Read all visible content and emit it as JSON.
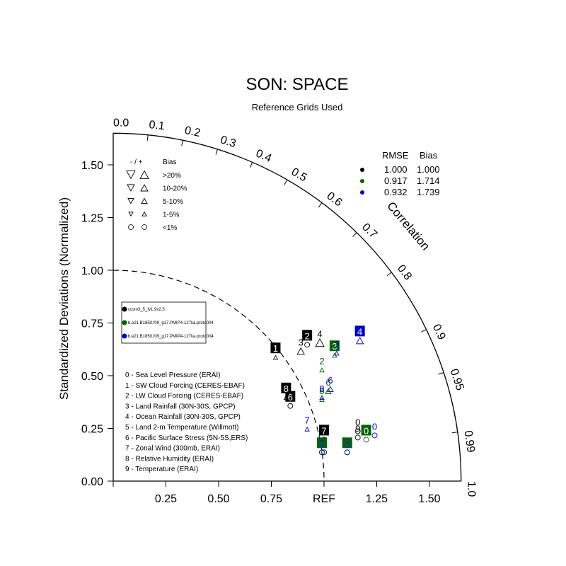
{
  "chart_data": {
    "type": "scatter",
    "subtype": "taylor-diagram",
    "title": "SON: SPACE",
    "subtitle": "Reference Grids Used",
    "ylabel": "Standardized Deviations (Normalized)",
    "correlation_label": "Correlation",
    "x_ticks": [
      "0.00",
      "0.25",
      "0.50",
      "0.75",
      "REF",
      "1.25",
      "1.50"
    ],
    "x_tick_values": [
      0,
      0.25,
      0.5,
      0.75,
      1.0,
      1.25,
      1.5
    ],
    "y_ticks": [
      "0.00",
      "0.25",
      "0.50",
      "0.75",
      "1.00",
      "1.25",
      "1.50"
    ],
    "y_tick_values": [
      0,
      0.25,
      0.5,
      0.75,
      1.0,
      1.25,
      1.5
    ],
    "radius_max": 1.65,
    "corr_ticks": [
      "0.0",
      "0.1",
      "0.2",
      "0.3",
      "0.4",
      "0.5",
      "0.6",
      "0.7",
      "0.8",
      "0.9",
      "0.95",
      "0.99",
      "1.0"
    ],
    "corr_tick_values": [
      0.0,
      0.1,
      0.2,
      0.3,
      0.4,
      0.5,
      0.6,
      0.7,
      0.8,
      0.9,
      0.95,
      0.99,
      1.0
    ],
    "reference_arc_radius": 1.0,
    "bias_legend": {
      "header_sign": "- / +",
      "header_bias": "Bias",
      "rows": [
        {
          "label": ">20%",
          "level": 4
        },
        {
          "label": "10-20%",
          "level": 3
        },
        {
          "label": "5-10%",
          "level": 2
        },
        {
          "label": "1-5%",
          "level": 1
        },
        {
          "label": "<1%",
          "level": 0
        }
      ]
    },
    "summary": {
      "header_rmse": "RMSE",
      "header_bias": "Bias",
      "rows": [
        {
          "color": "#000000",
          "rmse": "1.000",
          "bias": "1.000"
        },
        {
          "color": "#006400",
          "rmse": "0.917",
          "bias": "1.714"
        },
        {
          "color": "#0000cd",
          "rmse": "0.932",
          "bias": "1.739"
        }
      ]
    },
    "cases": [
      {
        "name": "ccsm3_5_fv1.9x2.5",
        "color": "#000000"
      },
      {
        "name": "b.e21.B1850.f09_g17.PMIP4-127ka.proto004",
        "color": "#006400"
      },
      {
        "name": "b.e21.B1850.f09_g17.PMIP4-127ka.proto004",
        "color": "#0000cd"
      }
    ],
    "variables": [
      "0 - Sea Level Pressure (ERAI)",
      "1 - SW Cloud Forcing (CERES-EBAF)",
      "2 - LW Cloud Forcing (CERES-EBAF)",
      "3 - Land Rainfall (30N-30S, GPCP)",
      "4 - Ocean Rainfall (30N-30S, GPCP)",
      "5 - Land 2-m Temperature (Willmott)",
      "6 - Pacific Surface Stress (5N-5S,ERS)",
      "7 - Zonal Wind (300mb, ERAI)",
      "8 - Relative Humidity (ERAI)",
      "9 - Temperature (ERAI)"
    ],
    "series": [
      {
        "name": "ccsm3_5_fv1.9x2.5",
        "points": [
          {
            "id": "0",
            "x": 1.16,
            "y": 0.26,
            "boxed": false,
            "marker": "circle",
            "dir": "up",
            "level": 0
          },
          {
            "id": "1",
            "x": 0.77,
            "y": 0.61,
            "boxed": true,
            "marker": "tri",
            "dir": "up",
            "level": 1
          },
          {
            "id": "2",
            "x": 0.92,
            "y": 0.67,
            "boxed": true,
            "marker": "circle",
            "dir": "up",
            "level": 0
          },
          {
            "id": "3",
            "x": 0.89,
            "y": 0.64,
            "boxed": false,
            "marker": "tri",
            "dir": "up",
            "level": 3
          },
          {
            "id": "4",
            "x": 0.98,
            "y": 0.68,
            "boxed": false,
            "marker": "tri",
            "dir": "up",
            "level": 4
          },
          {
            "id": "5",
            "x": 1.0,
            "y": 0.16,
            "boxed": false,
            "marker": "circle",
            "dir": "up",
            "level": 0
          },
          {
            "id": "6",
            "x": 0.84,
            "y": 0.38,
            "boxed": true,
            "marker": "circle",
            "dir": "up",
            "level": 0
          },
          {
            "id": "7",
            "x": 1.0,
            "y": 0.22,
            "boxed": true,
            "marker": "circle",
            "dir": "up",
            "level": 0
          },
          {
            "id": "8",
            "x": 0.82,
            "y": 0.42,
            "boxed": true,
            "marker": "tri",
            "dir": "up",
            "level": 1
          },
          {
            "id": "9",
            "x": 1.16,
            "y": 0.23,
            "boxed": false,
            "marker": "circle",
            "dir": "up",
            "level": 0
          }
        ]
      },
      {
        "name": "b.e21.B1850.f09_g17.PMIP4-127ka.proto004",
        "points": [
          {
            "id": "0",
            "x": 1.2,
            "y": 0.22,
            "boxed": true,
            "marker": "circle",
            "dir": "up",
            "level": 0
          },
          {
            "id": "2",
            "x": 0.99,
            "y": 0.55,
            "boxed": false,
            "marker": "tri",
            "dir": "up",
            "level": 1
          },
          {
            "id": "3",
            "x": 1.05,
            "y": 0.62,
            "boxed": true,
            "marker": "tri",
            "dir": "up",
            "level": 1
          },
          {
            "id": "5",
            "x": 0.99,
            "y": 0.16,
            "boxed": true,
            "marker": "circle",
            "dir": "up",
            "level": 0
          },
          {
            "id": "6",
            "x": 1.02,
            "y": 0.45,
            "boxed": false,
            "marker": "tri",
            "dir": "up",
            "level": 2
          },
          {
            "id": "8",
            "x": 0.99,
            "y": 0.41,
            "boxed": false,
            "marker": "tri",
            "dir": "up",
            "level": 1
          },
          {
            "id": "9",
            "x": 1.11,
            "y": 0.16,
            "boxed": true,
            "marker": "circle",
            "dir": "up",
            "level": 0
          }
        ]
      },
      {
        "name": "b.e21.B1850.f09_g17.PMIP4-127ka.proto004",
        "points": [
          {
            "id": "0",
            "x": 1.24,
            "y": 0.24,
            "boxed": false,
            "marker": "circle",
            "dir": "up",
            "level": 0
          },
          {
            "id": "3",
            "x": 1.06,
            "y": 0.63,
            "boxed": false,
            "marker": "tri",
            "dir": "up",
            "level": 1
          },
          {
            "id": "4",
            "x": 1.17,
            "y": 0.69,
            "boxed": true,
            "marker": "tri",
            "dir": "up",
            "level": 3
          },
          {
            "id": "5",
            "x": 0.99,
            "y": 0.16,
            "boxed": false,
            "marker": "circle",
            "dir": "up",
            "level": 0
          },
          {
            "id": "6",
            "x": 1.03,
            "y": 0.46,
            "boxed": false,
            "marker": "tri",
            "dir": "up",
            "level": 2
          },
          {
            "id": "7",
            "x": 0.92,
            "y": 0.27,
            "boxed": false,
            "marker": "tri",
            "dir": "up",
            "level": 1
          },
          {
            "id": "8",
            "x": 0.99,
            "y": 0.42,
            "boxed": false,
            "marker": "tri",
            "dir": "up",
            "level": 1
          },
          {
            "id": "9",
            "x": 1.11,
            "y": 0.16,
            "boxed": false,
            "marker": "circle",
            "dir": "up",
            "level": 0
          }
        ]
      }
    ]
  }
}
